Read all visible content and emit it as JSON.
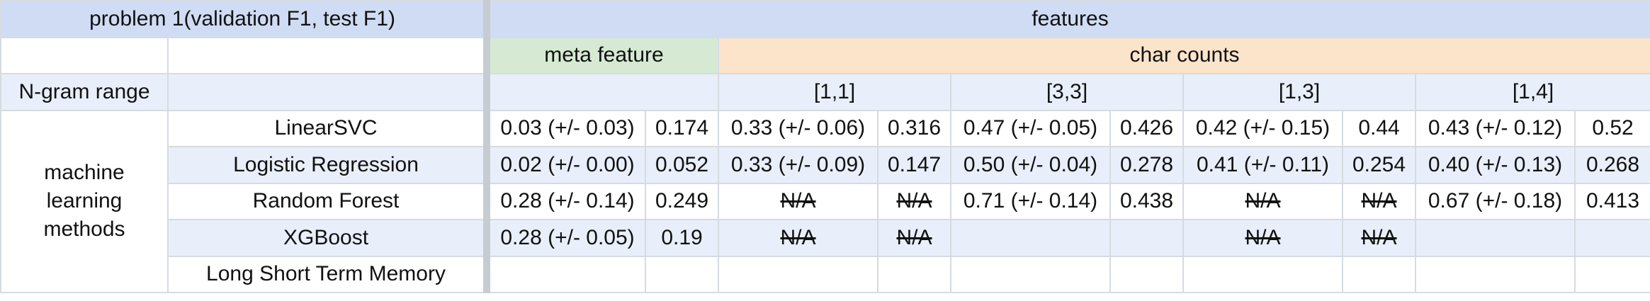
{
  "header": {
    "problem_label": "problem 1(validation F1, test F1)",
    "features_label": "features"
  },
  "groups": {
    "meta": "meta feature",
    "char": "char counts"
  },
  "ngram": {
    "label": "N-gram range",
    "ranges": [
      "[1,1]",
      "[3,3]",
      "[1,3]",
      "[1,4]"
    ]
  },
  "section_label": "machine learning methods",
  "rows": [
    {
      "method": "LinearSVC",
      "cells": [
        "0.03 (+/- 0.03)",
        "0.174",
        "0.33 (+/- 0.06)",
        "0.316",
        "0.47 (+/- 0.05)",
        "0.426",
        "0.42 (+/- 0.15)",
        "0.44",
        "0.43 (+/- 0.12)",
        "0.52"
      ]
    },
    {
      "method": "Logistic Regression",
      "cells": [
        "0.02 (+/- 0.00)",
        "0.052",
        "0.33 (+/- 0.09)",
        "0.147",
        "0.50 (+/- 0.04)",
        "0.278",
        "0.41 (+/- 0.11)",
        "0.254",
        "0.40 (+/- 0.13)",
        "0.268"
      ]
    },
    {
      "method": "Random Forest",
      "cells": [
        "0.28 (+/- 0.14)",
        "0.249",
        "N/A",
        "N/A",
        "0.71 (+/- 0.14)",
        "0.438",
        "N/A",
        "N/A",
        "0.67 (+/- 0.18)",
        "0.413"
      ]
    },
    {
      "method": "XGBoost",
      "cells": [
        "0.28 (+/- 0.05)",
        "0.19",
        "N/A",
        "N/A",
        "",
        "",
        "N/A",
        "N/A",
        "",
        ""
      ]
    },
    {
      "method": "Long Short Term Memory",
      "cells": [
        "",
        "",
        "",
        "",
        "",
        "",
        "",
        "",
        "",
        ""
      ]
    }
  ]
}
